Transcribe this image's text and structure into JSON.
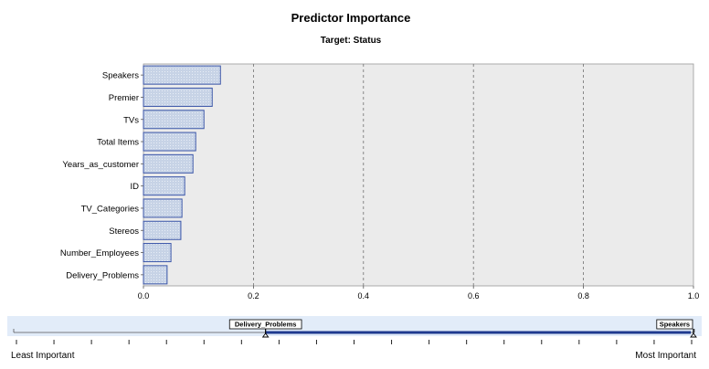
{
  "chart_data": {
    "type": "bar",
    "orientation": "horizontal",
    "title": "Predictor Importance",
    "subtitle": "Target: Status",
    "categories": [
      "Speakers",
      "Premier",
      "TVs",
      "Total Items",
      "Years_as_customer",
      "ID",
      "TV_Categories",
      "Stereos",
      "Number_Employees",
      "Delivery_Problems"
    ],
    "values": [
      0.14,
      0.125,
      0.11,
      0.095,
      0.09,
      0.075,
      0.07,
      0.068,
      0.05,
      0.043
    ],
    "xlim": [
      0,
      1
    ],
    "xticks": [
      "0.0",
      "0.2",
      "0.4",
      "0.6",
      "0.8",
      "1.0"
    ],
    "xtick_values": [
      0,
      0.2,
      0.4,
      0.6,
      0.8,
      1.0
    ],
    "grid": "vertical dashed",
    "colors": {
      "bar_fill": "#c7d3e6",
      "bar_stroke": "#3b56a8",
      "plot_bg": "#ebebeb",
      "slider_bg": "#e2ecf9",
      "slider_line": "#1f3a8f"
    }
  },
  "slider": {
    "least_label": "Least Important",
    "most_label": "Most Important",
    "left_marker_label": "Delivery_Problems",
    "right_marker_label": "Speakers",
    "range": [
      0.37,
      1.0
    ]
  }
}
